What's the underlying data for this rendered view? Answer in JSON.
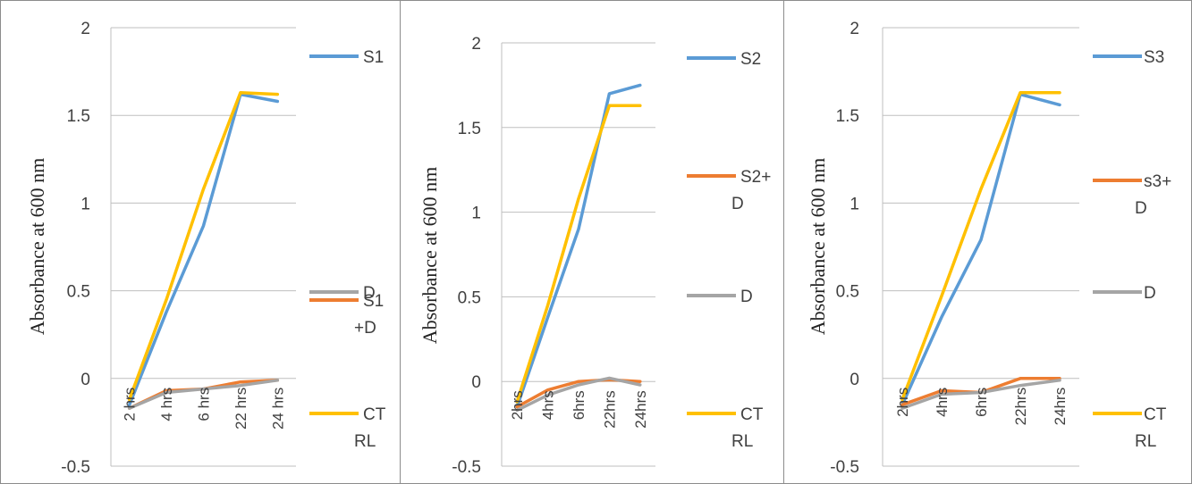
{
  "chart_data": [
    {
      "type": "line",
      "ylabel": "Absorbance  at 600 nm",
      "ylim": [
        -0.5,
        2
      ],
      "yticks": [
        "2",
        "1.5",
        "1",
        "0.5",
        "0",
        "-0.5"
      ],
      "categories": [
        "2 hrs",
        "4 hrs",
        "6 hrs",
        "22 hrs",
        "24 hrs"
      ],
      "legend_position": "right",
      "series": [
        {
          "name": [
            "S1"
          ],
          "color": "#5B9BD5",
          "values": [
            -0.15,
            0.38,
            0.87,
            1.62,
            1.58
          ]
        },
        {
          "name": [
            "S1",
            "+D"
          ],
          "color": "#ED7D31",
          "values": [
            -0.17,
            -0.07,
            -0.06,
            -0.02,
            -0.01
          ]
        },
        {
          "name": [
            "D"
          ],
          "color": "#A5A5A5",
          "values": [
            -0.17,
            -0.08,
            -0.06,
            -0.04,
            -0.01
          ]
        },
        {
          "name": [
            "CT",
            "RL"
          ],
          "color": "#FFC000",
          "values": [
            -0.12,
            0.45,
            1.08,
            1.63,
            1.62
          ]
        }
      ]
    },
    {
      "type": "line",
      "ylabel": "Absorbance at 600 nm",
      "ylim": [
        -0.5,
        2
      ],
      "yticks": [
        "2",
        "1.5",
        "1",
        "0.5",
        "0",
        "-0.5"
      ],
      "categories": [
        "2hrs",
        "4hrs",
        "6hrs",
        "22hrs",
        "24hrs"
      ],
      "legend_position": "right",
      "series": [
        {
          "name": [
            "S2"
          ],
          "color": "#5B9BD5",
          "values": [
            -0.15,
            0.38,
            0.9,
            1.7,
            1.75
          ]
        },
        {
          "name": [
            "S2+",
            "D"
          ],
          "color": "#ED7D31",
          "values": [
            -0.15,
            -0.05,
            0.0,
            0.01,
            0.0
          ]
        },
        {
          "name": [
            "D"
          ],
          "color": "#A5A5A5",
          "values": [
            -0.17,
            -0.08,
            -0.02,
            0.02,
            -0.02
          ]
        },
        {
          "name": [
            "CT",
            "RL"
          ],
          "color": "#FFC000",
          "values": [
            -0.12,
            0.45,
            1.08,
            1.63,
            1.63
          ]
        }
      ]
    },
    {
      "type": "line",
      "ylabel": "Absorbance at 600 nm",
      "ylim": [
        -0.5,
        2
      ],
      "yticks": [
        "2",
        "1.5",
        "1",
        "0.5",
        "0",
        "-0.5"
      ],
      "categories": [
        "2hrs",
        "4hrs",
        "6hrs",
        "22hrs",
        "24hrs"
      ],
      "legend_position": "right",
      "series": [
        {
          "name": [
            "S3"
          ],
          "color": "#5B9BD5",
          "values": [
            -0.15,
            0.35,
            0.79,
            1.62,
            1.56
          ]
        },
        {
          "name": [
            "s3+",
            "D"
          ],
          "color": "#ED7D31",
          "values": [
            -0.15,
            -0.07,
            -0.08,
            0.0,
            0.0
          ]
        },
        {
          "name": [
            "D"
          ],
          "color": "#A5A5A5",
          "values": [
            -0.17,
            -0.09,
            -0.08,
            -0.04,
            -0.01
          ]
        },
        {
          "name": [
            "CT",
            "RL"
          ],
          "color": "#FFC000",
          "values": [
            -0.12,
            0.47,
            1.08,
            1.63,
            1.63
          ]
        }
      ]
    }
  ]
}
